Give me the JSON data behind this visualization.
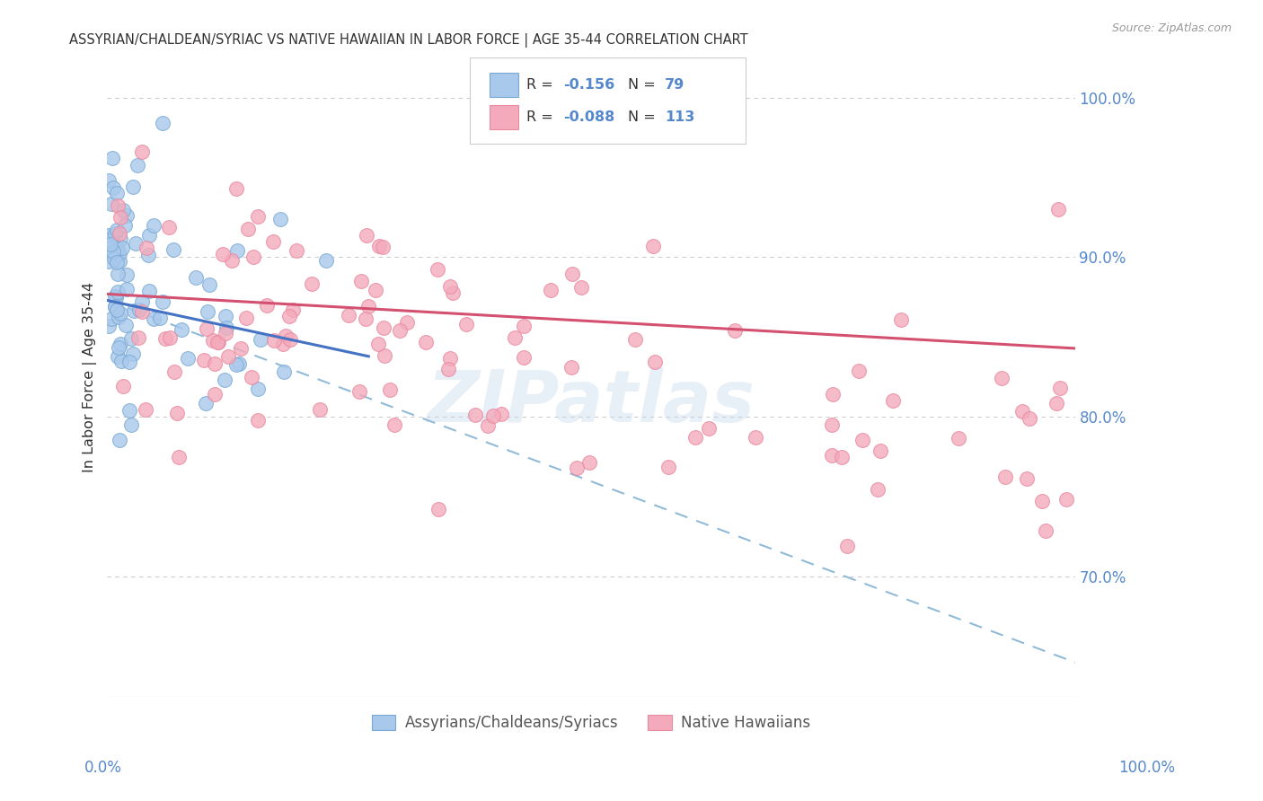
{
  "title": "ASSYRIAN/CHALDEAN/SYRIAC VS NATIVE HAWAIIAN IN LABOR FORCE | AGE 35-44 CORRELATION CHART",
  "source": "Source: ZipAtlas.com",
  "ylabel": "In Labor Force | Age 35-44",
  "legend_label1": "Assyrians/Chaldeans/Syriacs",
  "legend_label2": "Native Hawaiians",
  "r1_val": "-0.156",
  "n1_val": "79",
  "r2_val": "-0.088",
  "n2_val": "113",
  "ytick_labels": [
    "100.0%",
    "90.0%",
    "80.0%",
    "70.0%"
  ],
  "ytick_values": [
    1.0,
    0.9,
    0.8,
    0.7
  ],
  "color_blue": "#A8C8EC",
  "color_blue_edge": "#7AAAD4",
  "color_pink": "#F4AABB",
  "color_pink_edge": "#E88AA0",
  "color_trend_blue": "#4472C4",
  "color_trend_pink": "#D45070",
  "color_trend_dash": "#90BBD8",
  "color_axis_text": "#5588CC",
  "color_grid": "#CCCCCC",
  "color_title": "#333333",
  "color_source": "#999999",
  "watermark_color": "#C5D8EC",
  "watermark_alpha": 0.4,
  "background_color": "#FFFFFF",
  "xlim": [
    0.0,
    1.0
  ],
  "ylim": [
    0.625,
    1.025
  ],
  "blue_trend_x": [
    0.0,
    0.27
  ],
  "blue_trend_y": [
    0.873,
    0.838
  ],
  "pink_trend_x": [
    0.0,
    1.0
  ],
  "pink_trend_y": [
    0.877,
    0.843
  ],
  "dash_trend_x": [
    0.0,
    1.02
  ],
  "dash_trend_y": [
    0.873,
    0.642
  ]
}
